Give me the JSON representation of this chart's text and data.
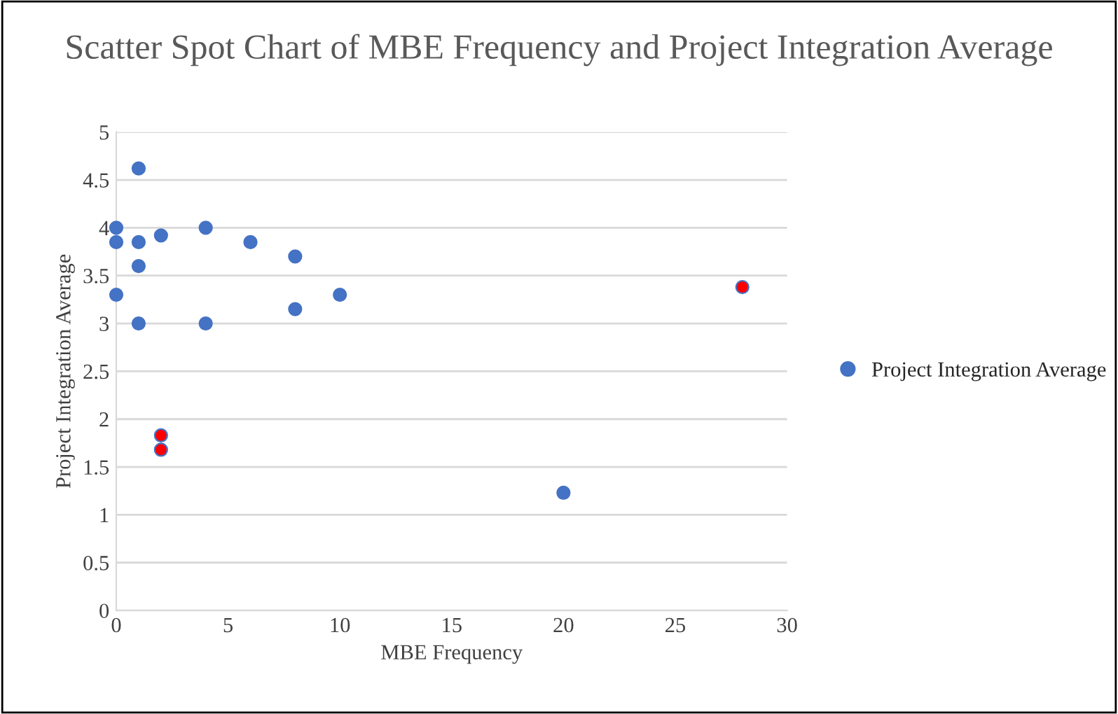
{
  "chart_data": {
    "type": "scatter",
    "title": "Scatter Spot Chart of MBE Frequency and Project Integration Average",
    "xlabel": "MBE Frequency",
    "ylabel": "Project Integration Average",
    "series": [
      {
        "name": "Project Integration Average",
        "color": "#4472c4",
        "x": [
          0,
          0,
          0,
          1,
          1,
          1,
          1,
          2,
          2,
          2,
          4,
          4,
          6,
          8,
          8,
          10,
          20,
          28
        ],
        "values": [
          4.0,
          3.85,
          3.3,
          4.62,
          3.85,
          3.6,
          3.0,
          3.92,
          1.83,
          1.68,
          4.0,
          3.0,
          3.85,
          3.7,
          3.15,
          3.3,
          1.23,
          3.38
        ],
        "colors": [
          "#4472c4",
          "#4472c4",
          "#4472c4",
          "#4472c4",
          "#4472c4",
          "#4472c4",
          "#4472c4",
          "#4472c4",
          "#ff0000",
          "#ff0000",
          "#4472c4",
          "#4472c4",
          "#4472c4",
          "#4472c4",
          "#4472c4",
          "#4472c4",
          "#4472c4",
          "#ff0000"
        ]
      }
    ],
    "xlim": [
      0,
      30
    ],
    "xticks": [
      0,
      5,
      10,
      15,
      20,
      25,
      30
    ],
    "ylim": [
      0,
      5
    ],
    "yticks": [
      0,
      0.5,
      1,
      1.5,
      2,
      2.5,
      3,
      3.5,
      4,
      4.5,
      5
    ],
    "grid": "y",
    "legend": "right",
    "marker": "circle"
  }
}
